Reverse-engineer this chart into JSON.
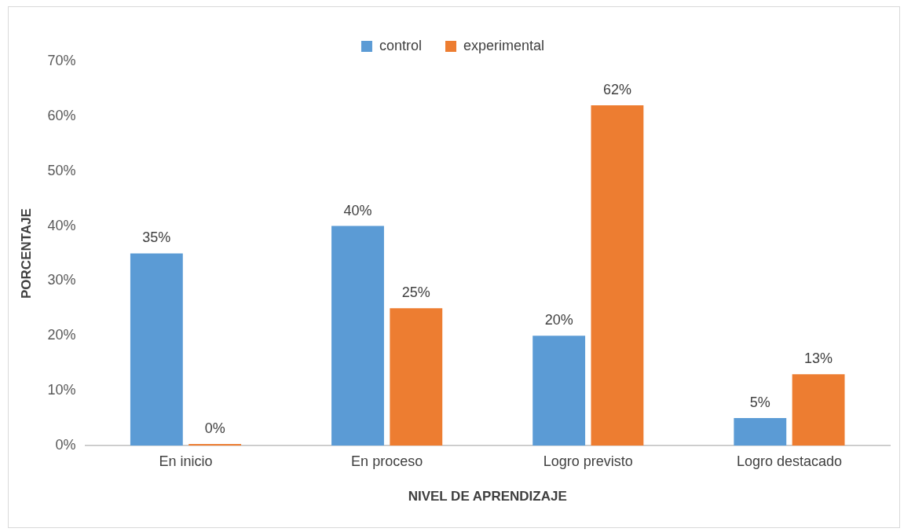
{
  "chart_data": {
    "type": "bar",
    "xlabel": "NIVEL DE APRENDIZAJE",
    "ylabel": "PORCENTAJE",
    "categories": [
      "En inicio",
      "En proceso",
      "Logro previsto",
      "Logro destacado"
    ],
    "series": [
      {
        "name": "control",
        "color": "#5b9bd5",
        "values": [
          35,
          40,
          20,
          5
        ],
        "value_labels": [
          "35%",
          "40%",
          "20%",
          "5%"
        ]
      },
      {
        "name": "experimental",
        "color": "#ed7d31",
        "values": [
          0,
          25,
          62,
          13
        ],
        "value_labels": [
          "0%",
          "25%",
          "62%",
          "13%"
        ]
      }
    ],
    "ylim": [
      0,
      70
    ],
    "yticks": [
      {
        "value": 0,
        "label": "0%"
      },
      {
        "value": 10,
        "label": "10%"
      },
      {
        "value": 20,
        "label": "20%"
      },
      {
        "value": 30,
        "label": "30%"
      },
      {
        "value": 40,
        "label": "40%"
      },
      {
        "value": 50,
        "label": "50%"
      },
      {
        "value": 60,
        "label": "60%"
      },
      {
        "value": 70,
        "label": "70%"
      }
    ],
    "grid": false,
    "legend": "top"
  }
}
